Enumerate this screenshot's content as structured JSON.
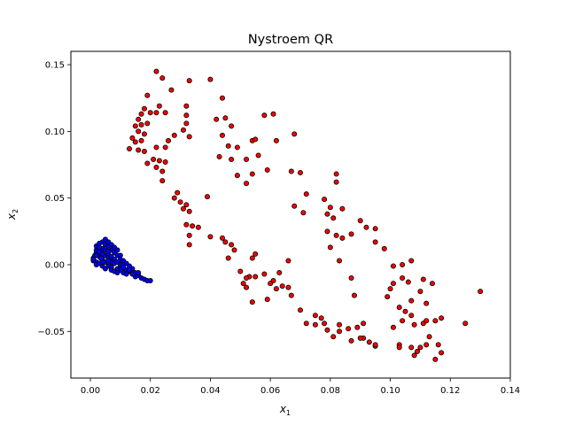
{
  "chart_data": {
    "type": "scatter",
    "title": "Nystroem QR",
    "xlabel_base": "x",
    "xlabel_sub": "1",
    "ylabel_base": "x",
    "ylabel_sub": "2",
    "xlim": [
      -0.0065,
      0.14
    ],
    "ylim": [
      -0.085,
      0.16
    ],
    "xticks": [
      0.0,
      0.02,
      0.04,
      0.06,
      0.08,
      0.1,
      0.12,
      0.14
    ],
    "xtick_labels": [
      "0.00",
      "0.02",
      "0.04",
      "0.06",
      "0.08",
      "0.10",
      "0.12",
      "0.14"
    ],
    "yticks": [
      -0.05,
      0.0,
      0.05,
      0.1,
      0.15
    ],
    "ytick_labels": [
      "−0.05",
      "0.00",
      "0.05",
      "0.10",
      "0.15"
    ],
    "grid": false,
    "series": [
      {
        "color": "#ff0000",
        "edge_color": "#000000",
        "points": [
          [
            0.022,
            0.145
          ],
          [
            0.024,
            0.14
          ],
          [
            0.033,
            0.138
          ],
          [
            0.04,
            0.139
          ],
          [
            0.019,
            0.127
          ],
          [
            0.027,
            0.131
          ],
          [
            0.023,
            0.119
          ],
          [
            0.032,
            0.119
          ],
          [
            0.044,
            0.125
          ],
          [
            0.018,
            0.117
          ],
          [
            0.017,
            0.113
          ],
          [
            0.02,
            0.114
          ],
          [
            0.022,
            0.114
          ],
          [
            0.025,
            0.114
          ],
          [
            0.016,
            0.109
          ],
          [
            0.017,
            0.105
          ],
          [
            0.019,
            0.106
          ],
          [
            0.015,
            0.104
          ],
          [
            0.016,
            0.1
          ],
          [
            0.018,
            0.098
          ],
          [
            0.014,
            0.095
          ],
          [
            0.015,
            0.092
          ],
          [
            0.017,
            0.093
          ],
          [
            0.013,
            0.087
          ],
          [
            0.016,
            0.086
          ],
          [
            0.018,
            0.085
          ],
          [
            0.022,
            0.088
          ],
          [
            0.025,
            0.088
          ],
          [
            0.026,
            0.093
          ],
          [
            0.028,
            0.097
          ],
          [
            0.032,
            0.112
          ],
          [
            0.032,
            0.106
          ],
          [
            0.031,
            0.101
          ],
          [
            0.033,
            0.096
          ],
          [
            0.042,
            0.109
          ],
          [
            0.045,
            0.11
          ],
          [
            0.047,
            0.104
          ],
          [
            0.044,
            0.097
          ],
          [
            0.049,
            0.088
          ],
          [
            0.046,
            0.089
          ],
          [
            0.054,
            0.093
          ],
          [
            0.055,
            0.094
          ],
          [
            0.058,
            0.112
          ],
          [
            0.061,
            0.113
          ],
          [
            0.062,
            0.093
          ],
          [
            0.068,
            0.098
          ],
          [
            0.056,
            0.082
          ],
          [
            0.043,
            0.081
          ],
          [
            0.047,
            0.079
          ],
          [
            0.052,
            0.079
          ],
          [
            0.021,
            0.079
          ],
          [
            0.019,
            0.076
          ],
          [
            0.023,
            0.078
          ],
          [
            0.025,
            0.077
          ],
          [
            0.022,
            0.073
          ],
          [
            0.024,
            0.07
          ],
          [
            0.024,
            0.063
          ],
          [
            0.049,
            0.067
          ],
          [
            0.052,
            0.061
          ],
          [
            0.054,
            0.068
          ],
          [
            0.059,
            0.071
          ],
          [
            0.067,
            0.07
          ],
          [
            0.07,
            0.069
          ],
          [
            0.068,
            0.044
          ],
          [
            0.072,
            0.053
          ],
          [
            0.071,
            0.039
          ],
          [
            0.078,
            0.049
          ],
          [
            0.08,
            0.043
          ],
          [
            0.082,
            0.068
          ],
          [
            0.082,
            0.062
          ],
          [
            0.079,
            0.038
          ],
          [
            0.084,
            0.042
          ],
          [
            0.081,
            0.035
          ],
          [
            0.079,
            0.025
          ],
          [
            0.082,
            0.022
          ],
          [
            0.084,
            0.02
          ],
          [
            0.087,
            0.023
          ],
          [
            0.08,
            0.013
          ],
          [
            0.083,
            0.003
          ],
          [
            0.09,
            0.033
          ],
          [
            0.092,
            0.028
          ],
          [
            0.095,
            0.027
          ],
          [
            0.095,
            0.017
          ],
          [
            0.098,
            0.012
          ],
          [
            0.101,
            -0.001
          ],
          [
            0.104,
            0.0
          ],
          [
            0.107,
            0.003
          ],
          [
            0.104,
            -0.01
          ],
          [
            0.106,
            -0.013
          ],
          [
            0.111,
            -0.011
          ],
          [
            0.114,
            -0.014
          ],
          [
            0.11,
            -0.02
          ],
          [
            0.107,
            -0.027
          ],
          [
            0.112,
            -0.029
          ],
          [
            0.101,
            -0.014
          ],
          [
            0.1,
            -0.018
          ],
          [
            0.099,
            -0.024
          ],
          [
            0.103,
            -0.032
          ],
          [
            0.105,
            -0.035
          ],
          [
            0.107,
            -0.038
          ],
          [
            0.108,
            -0.045
          ],
          [
            0.111,
            -0.044
          ],
          [
            0.104,
            -0.042
          ],
          [
            0.101,
            -0.047
          ],
          [
            0.115,
            -0.042
          ],
          [
            0.117,
            -0.04
          ],
          [
            0.125,
            -0.044
          ],
          [
            0.13,
            -0.02
          ],
          [
            0.112,
            -0.042
          ],
          [
            0.113,
            -0.054
          ],
          [
            0.112,
            -0.06
          ],
          [
            0.11,
            -0.062
          ],
          [
            0.107,
            -0.062
          ],
          [
            0.109,
            -0.065
          ],
          [
            0.108,
            -0.068
          ],
          [
            0.103,
            -0.06
          ],
          [
            0.103,
            -0.062
          ],
          [
            0.116,
            -0.06
          ],
          [
            0.117,
            -0.066
          ],
          [
            0.115,
            -0.071
          ],
          [
            0.095,
            -0.061
          ],
          [
            0.091,
            -0.055
          ],
          [
            0.091,
            -0.044
          ],
          [
            0.089,
            -0.047
          ],
          [
            0.086,
            -0.048
          ],
          [
            0.083,
            -0.05
          ],
          [
            0.083,
            -0.045
          ],
          [
            0.078,
            -0.044
          ],
          [
            0.079,
            -0.049
          ],
          [
            0.088,
            -0.023
          ],
          [
            0.09,
            -0.055
          ],
          [
            0.093,
            -0.058
          ],
          [
            0.095,
            -0.06
          ],
          [
            0.087,
            -0.057
          ],
          [
            0.081,
            -0.054
          ],
          [
            0.075,
            -0.045
          ],
          [
            0.077,
            -0.04
          ],
          [
            0.075,
            -0.038
          ],
          [
            0.072,
            -0.044
          ],
          [
            0.07,
            -0.034
          ],
          [
            0.067,
            -0.023
          ],
          [
            0.062,
            -0.018
          ],
          [
            0.064,
            -0.016
          ],
          [
            0.066,
            -0.017
          ],
          [
            0.06,
            -0.014
          ],
          [
            0.061,
            -0.012
          ],
          [
            0.063,
            -0.006
          ],
          [
            0.058,
            -0.007
          ],
          [
            0.055,
            -0.009
          ],
          [
            0.053,
            -0.009
          ],
          [
            0.052,
            -0.01
          ],
          [
            0.05,
            -0.005
          ],
          [
            0.051,
            -0.014
          ],
          [
            0.052,
            -0.017
          ],
          [
            0.054,
            -0.028
          ],
          [
            0.059,
            -0.026
          ],
          [
            0.048,
            0.011
          ],
          [
            0.047,
            0.015
          ],
          [
            0.045,
            0.017
          ],
          [
            0.046,
            0.005
          ],
          [
            0.054,
            0.005
          ],
          [
            0.055,
            0.008
          ],
          [
            0.044,
            0.02
          ],
          [
            0.04,
            0.021
          ],
          [
            0.036,
            0.028
          ],
          [
            0.034,
            0.029
          ],
          [
            0.033,
            0.022
          ],
          [
            0.033,
            0.015
          ],
          [
            0.028,
            0.05
          ],
          [
            0.029,
            0.054
          ],
          [
            0.03,
            0.047
          ],
          [
            0.031,
            0.042
          ],
          [
            0.032,
            0.045
          ],
          [
            0.033,
            0.04
          ],
          [
            0.039,
            0.051
          ],
          [
            0.032,
            0.03
          ],
          [
            0.066,
            0.003
          ],
          [
            0.087,
            -0.01
          ]
        ]
      },
      {
        "color": "#0000ff",
        "edge_color": "#000000",
        "points": [
          [
            0.001,
            0.003
          ],
          [
            0.001,
            0.005
          ],
          [
            0.0015,
            0.007
          ],
          [
            0.002,
            0.009
          ],
          [
            0.002,
            0.011
          ],
          [
            0.002,
            0.014
          ],
          [
            0.003,
            0.016
          ],
          [
            0.004,
            0.017
          ],
          [
            0.005,
            0.019
          ],
          [
            0.005,
            0.015
          ],
          [
            0.004,
            0.012
          ],
          [
            0.003,
            0.01
          ],
          [
            0.003,
            0.006
          ],
          [
            0.002,
            0.002
          ],
          [
            0.002,
            0.0
          ],
          [
            0.003,
            0.001
          ],
          [
            0.004,
            0.004
          ],
          [
            0.005,
            0.007
          ],
          [
            0.005,
            0.011
          ],
          [
            0.006,
            0.014
          ],
          [
            0.006,
            0.017
          ],
          [
            0.007,
            0.015
          ],
          [
            0.007,
            0.011
          ],
          [
            0.006,
            0.008
          ],
          [
            0.006,
            0.005
          ],
          [
            0.005,
            0.002
          ],
          [
            0.004,
            -0.001
          ],
          [
            0.005,
            -0.003
          ],
          [
            0.006,
            -0.001
          ],
          [
            0.007,
            0.002
          ],
          [
            0.007,
            0.006
          ],
          [
            0.008,
            0.009
          ],
          [
            0.008,
            0.013
          ],
          [
            0.009,
            0.011
          ],
          [
            0.009,
            0.007
          ],
          [
            0.008,
            0.004
          ],
          [
            0.008,
            0.001
          ],
          [
            0.007,
            -0.002
          ],
          [
            0.007,
            -0.004
          ],
          [
            0.008,
            -0.005
          ],
          [
            0.009,
            -0.003
          ],
          [
            0.01,
            0.0
          ],
          [
            0.01,
            0.004
          ],
          [
            0.01,
            0.007
          ],
          [
            0.011,
            0.003
          ],
          [
            0.011,
            0.0
          ],
          [
            0.01,
            -0.004
          ],
          [
            0.009,
            -0.006
          ],
          [
            0.011,
            -0.006
          ],
          [
            0.012,
            -0.004
          ],
          [
            0.012,
            0.001
          ],
          [
            0.013,
            -0.001
          ],
          [
            0.013,
            -0.005
          ],
          [
            0.012,
            -0.007
          ],
          [
            0.014,
            -0.007
          ],
          [
            0.014,
            -0.003
          ],
          [
            0.015,
            -0.006
          ],
          [
            0.015,
            -0.009
          ],
          [
            0.016,
            -0.008
          ],
          [
            0.017,
            -0.01
          ],
          [
            0.018,
            -0.011
          ],
          [
            0.019,
            -0.012
          ],
          [
            0.02,
            -0.012
          ],
          [
            0.006,
            0.01
          ],
          [
            0.004,
            0.008
          ],
          [
            0.003,
            0.013
          ],
          [
            0.002,
            0.007
          ],
          [
            0.001,
            0.004
          ],
          [
            0.004,
            0.002
          ],
          [
            0.006,
            0.003
          ],
          [
            0.009,
            0.002
          ],
          [
            0.011,
            -0.002
          ],
          [
            0.013,
            -0.004
          ],
          [
            0.016,
            -0.006
          ],
          [
            0.0035,
            0.005
          ]
        ]
      }
    ]
  }
}
